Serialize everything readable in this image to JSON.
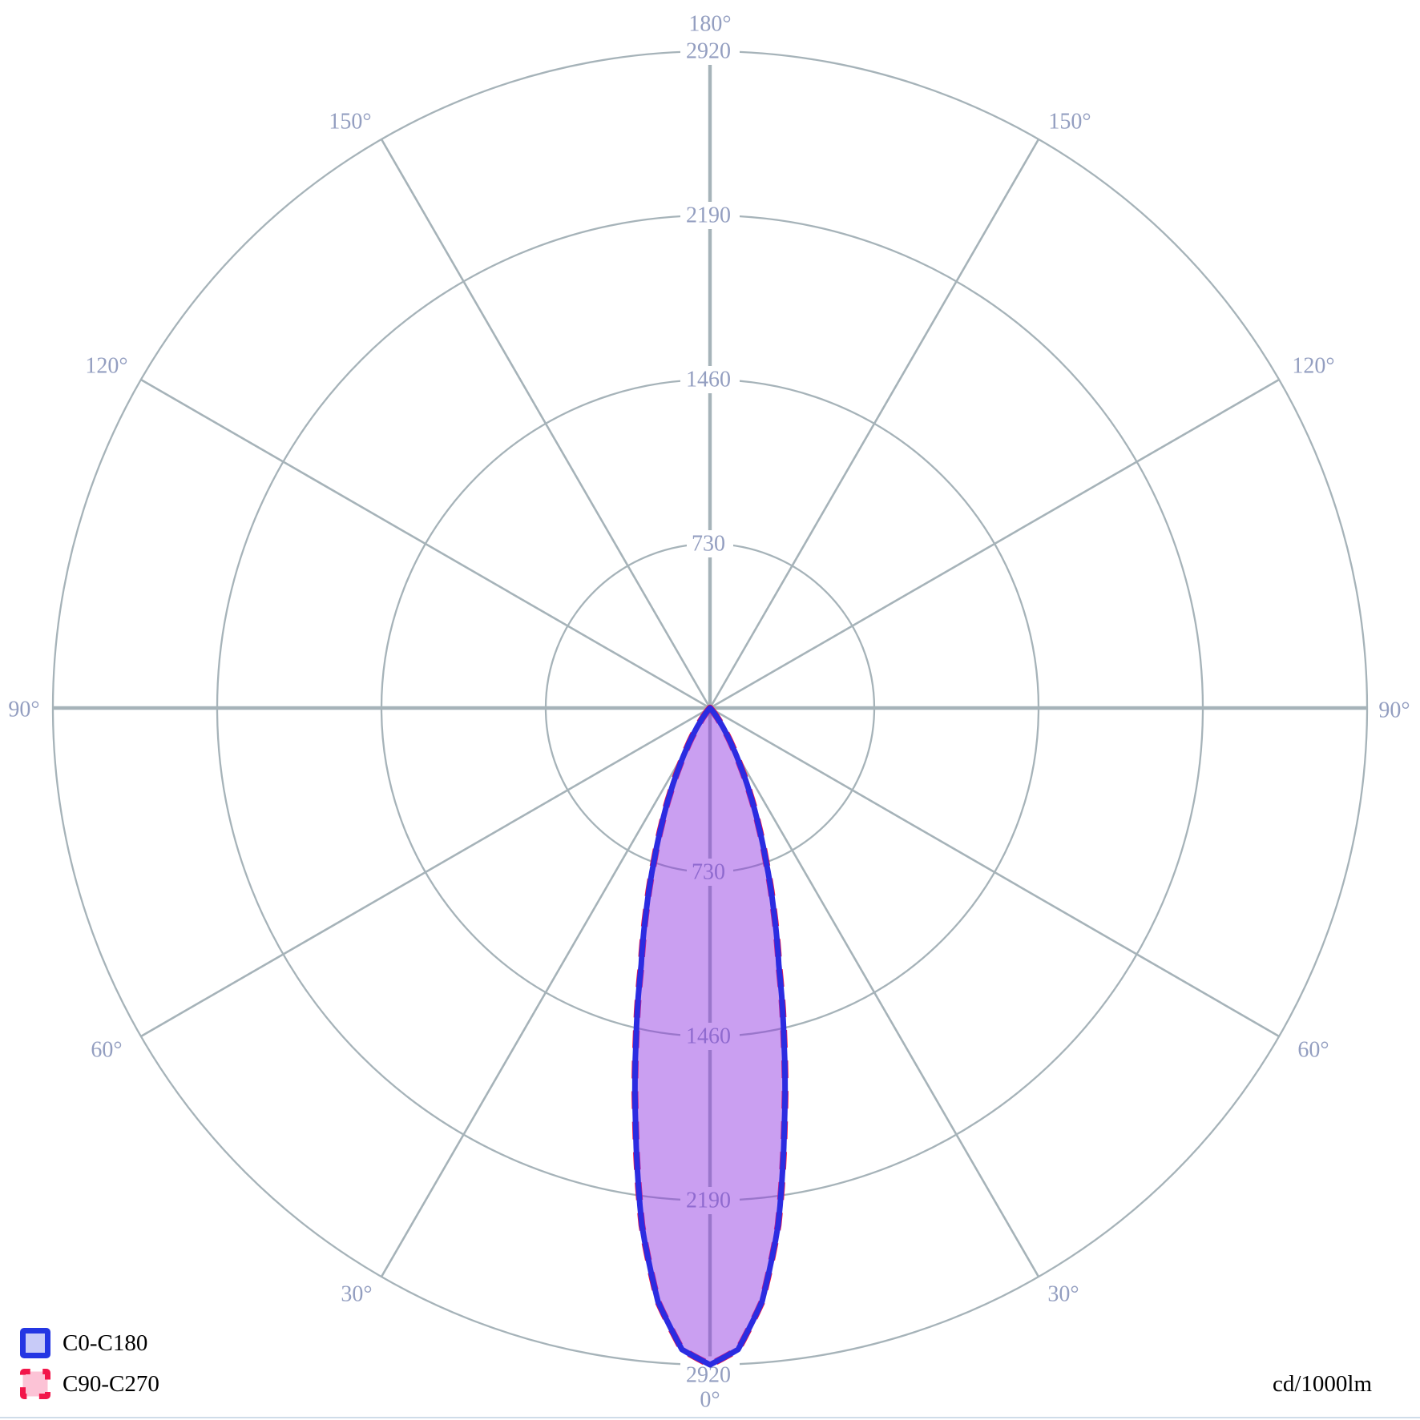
{
  "legend": {
    "items": [
      {
        "label": "C0-C180",
        "stroke": "#2436e3",
        "fill": "#c8cbf8",
        "border_style": "solid"
      },
      {
        "label": "C90-C270",
        "stroke": "#f2164a",
        "fill": "#fcc3d6",
        "border_style": "dashed"
      }
    ]
  },
  "units_label": "cd/1000lm",
  "colors": {
    "grid": "#a6b3b9",
    "tick_label": "#939ec0",
    "label_gap_background": "#ffffff",
    "beam_stroke": "#2b2ce1",
    "beam_fill": "rgba(140,45,225,0.46)",
    "c90_stroke": "#f2164a",
    "legend_text": "#000000",
    "units_text": "#000000",
    "bottom_edge": "#cfdce9"
  },
  "chart_data": {
    "type": "polar",
    "title": "",
    "units": "cd/1000lm",
    "radial_axis_max": 2920,
    "radial_ticks": [
      730,
      1460,
      2190,
      2920
    ],
    "angle_ticks_deg": [
      0,
      30,
      60,
      90,
      120,
      150,
      180
    ],
    "angle_tick_suffix": "°",
    "grid": "on",
    "legend_position": "bottom-left",
    "series": [
      {
        "name": "C0-C180",
        "symmetric_about_0deg": true,
        "theta_deg": [
          0,
          2.5,
          5,
          7.5,
          10,
          12.5,
          15,
          17.5,
          20,
          22.5,
          25,
          27.5,
          30,
          32.5,
          35,
          37.5,
          40,
          42.5
        ],
        "cd_per_1000lm": [
          2920,
          2855,
          2650,
          2320,
          1900,
          1520,
          1180,
          940,
          730,
          560,
          420,
          300,
          205,
          135,
          82,
          45,
          20,
          0
        ]
      },
      {
        "name": "C90-C270",
        "symmetric_about_0deg": true,
        "theta_deg": [
          0,
          2.5,
          5,
          7.5,
          10,
          12.5,
          15,
          17.5,
          20,
          22.5,
          25,
          27.5,
          30,
          32.5,
          35,
          37.5,
          40,
          42.5
        ],
        "cd_per_1000lm": [
          2920,
          2855,
          2650,
          2320,
          1900,
          1520,
          1180,
          940,
          730,
          560,
          420,
          300,
          205,
          135,
          82,
          45,
          20,
          0
        ]
      }
    ]
  }
}
